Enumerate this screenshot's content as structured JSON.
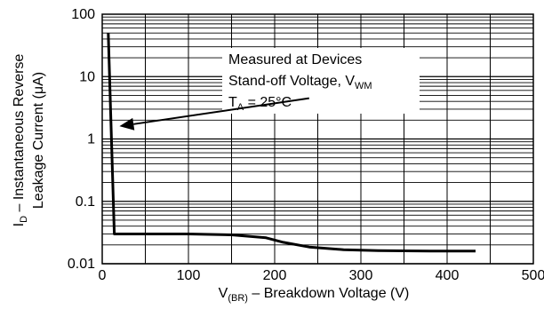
{
  "chart_data": {
    "type": "line",
    "title": "",
    "xlabel": {
      "main": "V",
      "sub": "(BR)",
      "rest": " – Breakdown Voltage (V)"
    },
    "ylabel": {
      "line1_main": "I",
      "line1_sub": "D",
      "line1_rest": " – Instantaneous Reverse",
      "line2": "Leakage Current (μA)"
    },
    "x_ticks": [
      0,
      100,
      200,
      300,
      400,
      500
    ],
    "x_tick_labels": [
      "0",
      "100",
      "200",
      "300",
      "400",
      "500"
    ],
    "y_ticks": [
      0.01,
      0.1,
      1,
      10,
      100
    ],
    "y_tick_labels": [
      "0.01",
      "0.1",
      "1",
      "10",
      "100"
    ],
    "xlim": [
      0,
      500
    ],
    "ylim": [
      0.01,
      100
    ],
    "y_scale": "log",
    "grid": true,
    "series": [
      {
        "x": [
          7,
          14,
          20,
          60,
          100,
          150,
          190,
          210,
          240,
          280,
          320,
          380,
          433
        ],
        "y": [
          50,
          0.03,
          0.03,
          0.03,
          0.03,
          0.029,
          0.026,
          0.022,
          0.0185,
          0.0168,
          0.0162,
          0.016,
          0.016
        ]
      }
    ],
    "annotation": {
      "line1": "Measured at Devices",
      "line2_main": "Stand-off Voltage, V",
      "line2_sub": "WM",
      "line3_main": "T",
      "line3_sub": "A",
      "line3_rest": " = 25°C",
      "arrow_from": [
        240,
        4.5
      ],
      "arrow_to": [
        20,
        1.6
      ]
    }
  }
}
